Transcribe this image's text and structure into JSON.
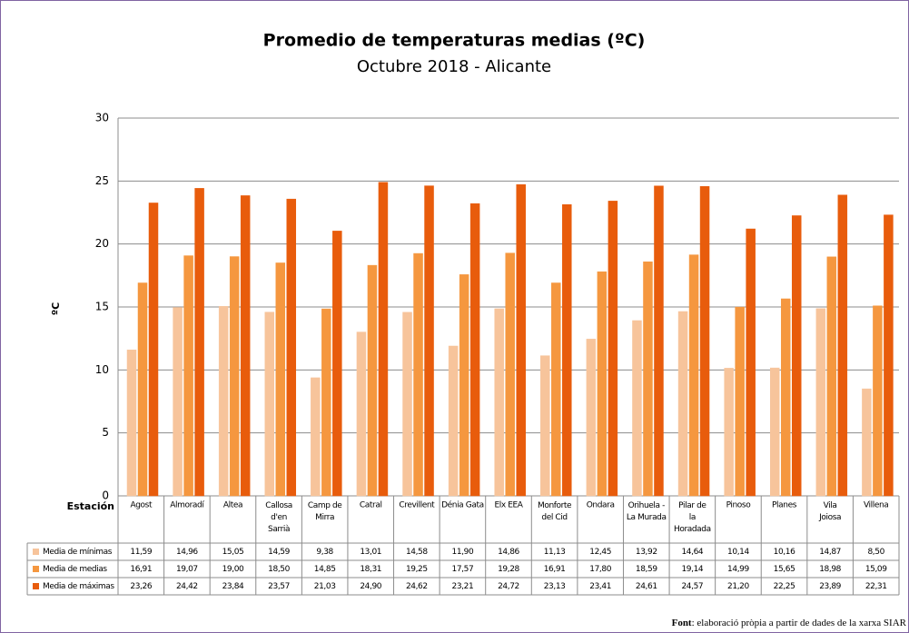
{
  "chart_data": {
    "type": "bar",
    "title": "Promedio de temperaturas medias (ºC)",
    "subtitle": "Octubre 2018 - Alicante",
    "ylabel": "ºC",
    "table_header": "Estación",
    "categories": [
      "Agost",
      "Almoradí",
      "Altea",
      "Callosa d'en Sarrià",
      "Camp de Mirra",
      "Catral",
      "Crevillent",
      "Dénia Gata",
      "Elx EEA",
      "Monforte del Cid",
      "Ondara",
      "Orihuela - La Murada",
      "Pilar de la Horadada",
      "Pinoso",
      "Planes",
      "Vila Joiosa",
      "Villena"
    ],
    "series": [
      {
        "name": "Media de mínimas",
        "color": "#f7c49b",
        "values": [
          11.59,
          14.96,
          15.05,
          14.59,
          9.38,
          13.01,
          14.58,
          11.9,
          14.86,
          11.13,
          12.45,
          13.92,
          14.64,
          10.14,
          10.16,
          14.87,
          8.5
        ],
        "value_labels": [
          "11,59",
          "14,96",
          "15,05",
          "14,59",
          "9,38",
          "13,01",
          "14,58",
          "11,90",
          "14,86",
          "11,13",
          "12,45",
          "13,92",
          "14,64",
          "10,14",
          "10,16",
          "14,87",
          "8,50"
        ]
      },
      {
        "name": "Media de medias",
        "color": "#f5973f",
        "values": [
          16.91,
          19.07,
          19.0,
          18.5,
          14.85,
          18.31,
          19.25,
          17.57,
          19.28,
          16.91,
          17.8,
          18.59,
          19.14,
          14.99,
          15.65,
          18.98,
          15.09
        ],
        "value_labels": [
          "16,91",
          "19,07",
          "19,00",
          "18,50",
          "14,85",
          "18,31",
          "19,25",
          "17,57",
          "19,28",
          "16,91",
          "17,80",
          "18,59",
          "19,14",
          "14,99",
          "15,65",
          "18,98",
          "15,09"
        ]
      },
      {
        "name": "Media de máximas",
        "color": "#e85c0c",
        "values": [
          23.26,
          24.42,
          23.84,
          23.57,
          21.03,
          24.9,
          24.62,
          23.21,
          24.72,
          23.13,
          23.41,
          24.61,
          24.57,
          21.2,
          22.25,
          23.89,
          22.31
        ],
        "value_labels": [
          "23,26",
          "24,42",
          "23,84",
          "23,57",
          "21,03",
          "24,90",
          "24,62",
          "23,21",
          "24,72",
          "23,13",
          "23,41",
          "24,61",
          "24,57",
          "21,20",
          "22,25",
          "23,89",
          "22,31"
        ]
      }
    ],
    "ylim": [
      0,
      30
    ],
    "yticks": [
      0,
      5,
      10,
      15,
      20,
      25,
      30
    ],
    "grid": true,
    "footer": {
      "label": "Font",
      "text": ": elaboració pròpia a partir de dades de la xarxa SIAR"
    }
  }
}
